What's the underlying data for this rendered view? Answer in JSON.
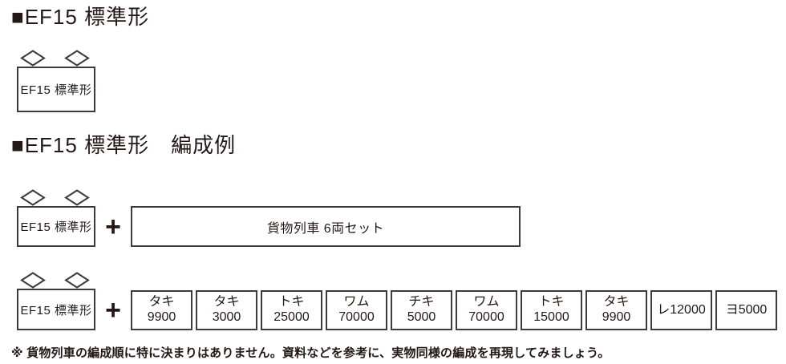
{
  "colors": {
    "background": "#ffffff",
    "ink": "#231815",
    "box_border": "#3e3a39"
  },
  "section1": {
    "heading": "■EF15 標準形",
    "loco_label": "EF15 標準形"
  },
  "section2": {
    "heading": "■EF15 標準形　編成例",
    "rows": [
      {
        "loco_label": "EF15 標準形",
        "plus": "+",
        "set_label": "貨物列車 6両セット"
      },
      {
        "loco_label": "EF15 標準形",
        "plus": "+",
        "cars": [
          {
            "lines": [
              "タキ",
              "9900"
            ]
          },
          {
            "lines": [
              "タキ",
              "3000"
            ]
          },
          {
            "lines": [
              "トキ",
              "25000"
            ]
          },
          {
            "lines": [
              "ワム",
              "70000"
            ]
          },
          {
            "lines": [
              "チキ",
              "5000"
            ]
          },
          {
            "lines": [
              "ワム",
              "70000"
            ]
          },
          {
            "lines": [
              "トキ",
              "15000"
            ]
          },
          {
            "lines": [
              "タキ",
              "9900"
            ]
          },
          {
            "lines": [
              "レ12000"
            ]
          },
          {
            "lines": [
              "ヨ5000"
            ]
          }
        ]
      }
    ]
  },
  "footnote": "※ 貨物列車の編成順に特に決まりはありません。資料などを参考に、実物同様の編成を再現してみましょう。"
}
